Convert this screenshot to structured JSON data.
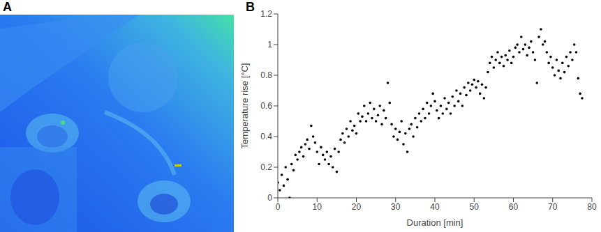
{
  "panel_labels": [
    "A",
    "B"
  ],
  "chart_data": {
    "type": "scatter",
    "x_label": "Duration [min]",
    "y_label": "Temperature rise [°C]",
    "xlim": [
      0,
      80
    ],
    "xticks": [
      0,
      10,
      20,
      30,
      40,
      50,
      60,
      70,
      80
    ],
    "ylim": [
      0,
      1.2
    ],
    "yticks": [
      0,
      0.2,
      0.4,
      0.6,
      0.8,
      1,
      1.2
    ],
    "grid": false,
    "color": "#000000",
    "marker": "circle",
    "x": [
      0,
      0.5,
      1,
      1.5,
      2,
      2.5,
      3,
      3.5,
      4,
      4.5,
      5,
      5.5,
      6,
      6.5,
      7,
      7.5,
      8,
      8.5,
      9,
      9.5,
      10,
      10.5,
      11,
      11.5,
      12,
      12.5,
      13,
      13.5,
      14,
      14.5,
      15,
      15.5,
      16,
      16.5,
      17,
      17.5,
      18,
      18.5,
      19,
      19.5,
      20,
      20.5,
      21,
      21.5,
      22,
      22.5,
      23,
      23.5,
      24,
      24.5,
      25,
      25.5,
      26,
      26.5,
      27,
      27.5,
      28,
      28.5,
      29,
      29.5,
      30,
      30.5,
      31,
      31.5,
      32,
      32.5,
      33,
      33.5,
      34,
      34.5,
      35,
      35.5,
      36,
      36.5,
      37,
      37.5,
      38,
      38.5,
      39,
      39.5,
      40,
      40.5,
      41,
      41.5,
      42,
      42.5,
      43,
      43.5,
      44,
      44.5,
      45,
      45.5,
      46,
      46.5,
      47,
      47.5,
      48,
      48.5,
      49,
      49.5,
      50,
      50.5,
      51,
      51.5,
      52,
      52.5,
      53,
      53.5,
      54,
      54.5,
      55,
      55.5,
      56,
      56.5,
      57,
      57.5,
      58,
      58.5,
      59,
      59.5,
      60,
      60.5,
      61,
      61.5,
      62,
      62.5,
      63,
      63.5,
      64,
      64.5,
      65,
      65.5,
      66,
      66.5,
      67,
      67.5,
      68,
      68.5,
      69,
      69.5,
      70,
      70.5,
      71,
      71.5,
      72,
      72.5,
      73,
      73.5,
      74,
      74.5,
      75,
      75.5,
      76,
      76.5,
      77,
      77.5
    ],
    "values": [
      0.1,
      0.05,
      0.15,
      0.08,
      0.2,
      0.12,
      0.0,
      0.22,
      0.18,
      0.28,
      0.25,
      0.3,
      0.33,
      0.27,
      0.35,
      0.38,
      0.32,
      0.47,
      0.4,
      0.36,
      0.3,
      0.22,
      0.33,
      0.28,
      0.25,
      0.3,
      0.22,
      0.27,
      0.2,
      0.32,
      0.17,
      0.3,
      0.38,
      0.42,
      0.36,
      0.45,
      0.4,
      0.5,
      0.44,
      0.47,
      0.42,
      0.55,
      0.5,
      0.53,
      0.6,
      0.5,
      0.55,
      0.62,
      0.52,
      0.58,
      0.5,
      0.54,
      0.6,
      0.48,
      0.57,
      0.52,
      0.75,
      0.62,
      0.48,
      0.4,
      0.45,
      0.38,
      0.43,
      0.5,
      0.35,
      0.42,
      0.3,
      0.45,
      0.48,
      0.4,
      0.52,
      0.46,
      0.55,
      0.5,
      0.58,
      0.52,
      0.62,
      0.55,
      0.6,
      0.68,
      0.63,
      0.57,
      0.52,
      0.6,
      0.55,
      0.65,
      0.58,
      0.62,
      0.55,
      0.66,
      0.6,
      0.7,
      0.63,
      0.68,
      0.6,
      0.72,
      0.67,
      0.75,
      0.7,
      0.74,
      0.77,
      0.72,
      0.76,
      0.68,
      0.74,
      0.65,
      0.72,
      0.82,
      0.88,
      0.92,
      0.85,
      0.9,
      0.95,
      0.88,
      0.92,
      0.86,
      0.93,
      0.9,
      0.96,
      0.88,
      0.92,
      0.98,
      1.0,
      0.95,
      1.05,
      0.97,
      1.0,
      0.93,
      0.98,
      1.02,
      0.95,
      0.9,
      0.75,
      1.05,
      1.1,
      1.0,
      1.02,
      0.95,
      0.88,
      0.92,
      0.85,
      0.8,
      0.9,
      0.83,
      0.78,
      0.88,
      0.82,
      0.92,
      0.86,
      0.95,
      0.9,
      1.0,
      0.95,
      0.78,
      0.68,
      0.65
    ]
  }
}
